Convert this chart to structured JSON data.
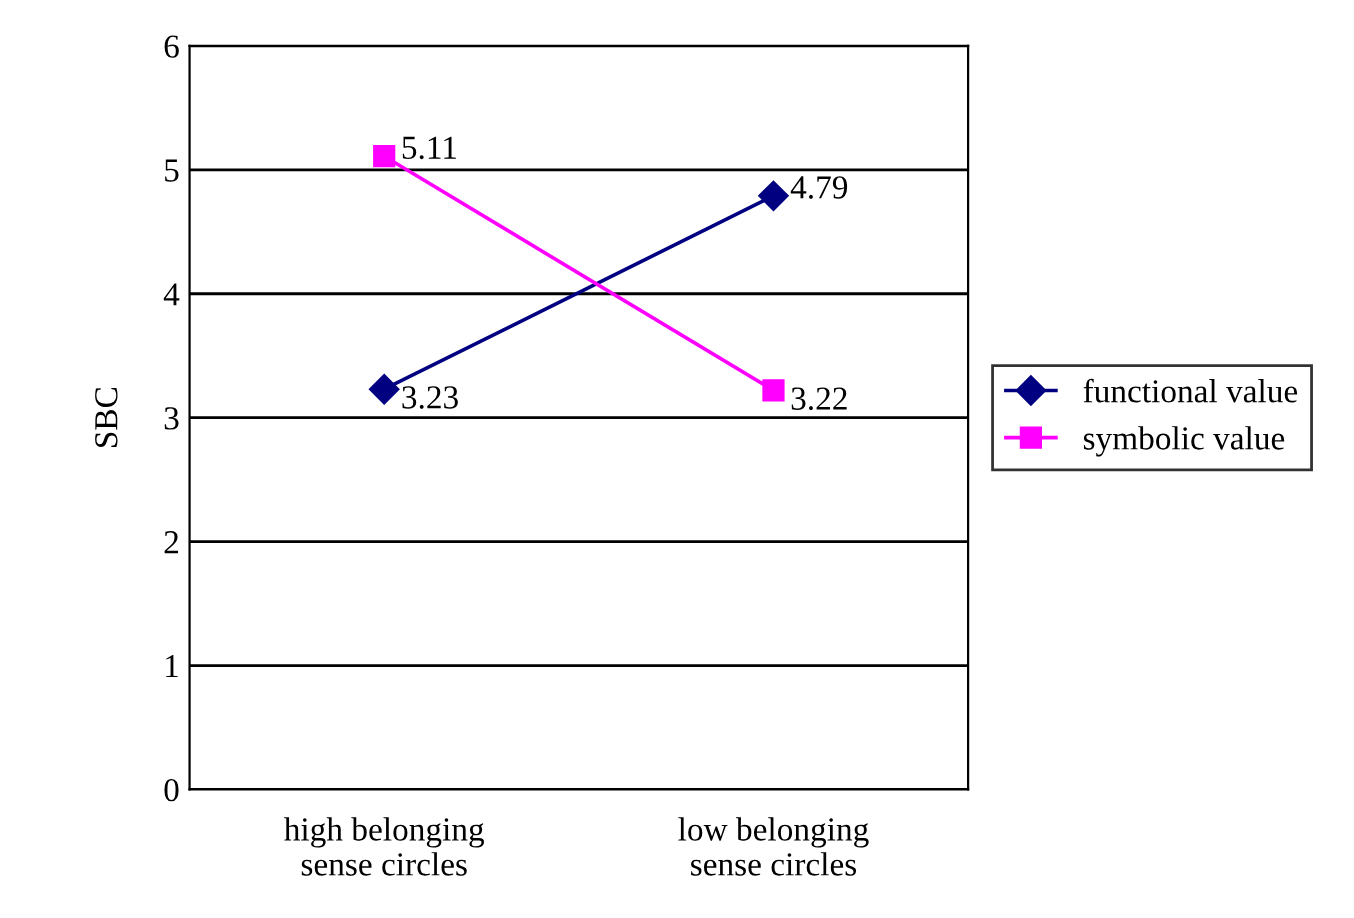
{
  "chart_data": {
    "type": "line",
    "ylabel": "SBC",
    "categories": [
      "high belonging\nsense circles",
      "low belonging\nsense circles"
    ],
    "series": [
      {
        "name": "functional value",
        "color": "#000080",
        "values": [
          3.23,
          4.79
        ],
        "marker": "diamond"
      },
      {
        "name": "symbolic value",
        "color": "#ff00ff",
        "values": [
          5.11,
          3.22
        ],
        "marker": "square"
      }
    ],
    "ylim": [
      0,
      6
    ],
    "yticks": [
      0,
      1,
      2,
      3,
      4,
      5,
      6
    ],
    "grid": "y",
    "legend": "right",
    "data_labels": true
  }
}
